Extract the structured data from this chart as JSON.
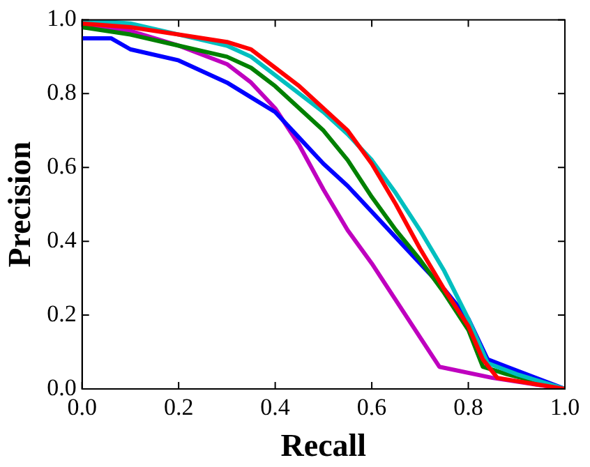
{
  "chart_data": {
    "type": "line",
    "xlabel": "Recall",
    "ylabel": "Precision",
    "xlim": [
      0,
      1
    ],
    "ylim": [
      0,
      1
    ],
    "xticks": [
      {
        "value": 0,
        "label": "0.0"
      },
      {
        "value": 0.2,
        "label": "0.2"
      },
      {
        "value": 0.4,
        "label": "0.4"
      },
      {
        "value": 0.6,
        "label": "0.6"
      },
      {
        "value": 0.8,
        "label": "0.8"
      },
      {
        "value": 1,
        "label": "1.0"
      }
    ],
    "yticks": [
      {
        "value": 0,
        "label": "0.0"
      },
      {
        "value": 0.2,
        "label": "0.2"
      },
      {
        "value": 0.4,
        "label": "0.4"
      },
      {
        "value": 0.6,
        "label": "0.6"
      },
      {
        "value": 0.8,
        "label": "0.8"
      },
      {
        "value": 1,
        "label": "1.0"
      }
    ],
    "grid": false,
    "legend": false,
    "marker": "none",
    "line_style": "solid",
    "series": [
      {
        "color": "#ff0000",
        "x": [
          0,
          0.1,
          0.2,
          0.3,
          0.35,
          0.4,
          0.45,
          0.5,
          0.55,
          0.6,
          0.65,
          0.7,
          0.75,
          0.8,
          0.83,
          0.86,
          1.0
        ],
        "values": [
          0.99,
          0.98,
          0.96,
          0.94,
          0.92,
          0.87,
          0.82,
          0.76,
          0.7,
          0.61,
          0.5,
          0.38,
          0.27,
          0.17,
          0.08,
          0.03,
          0.0
        ]
      },
      {
        "color": "#00bfbf",
        "x": [
          0,
          0.1,
          0.2,
          0.3,
          0.35,
          0.4,
          0.45,
          0.5,
          0.55,
          0.6,
          0.65,
          0.7,
          0.75,
          0.8,
          0.84,
          0.9,
          1.0
        ],
        "values": [
          1.0,
          0.99,
          0.96,
          0.93,
          0.9,
          0.85,
          0.8,
          0.75,
          0.69,
          0.62,
          0.53,
          0.43,
          0.32,
          0.19,
          0.07,
          0.04,
          0.0
        ]
      },
      {
        "color": "#008000",
        "x": [
          0,
          0.1,
          0.2,
          0.3,
          0.35,
          0.4,
          0.45,
          0.5,
          0.55,
          0.6,
          0.65,
          0.7,
          0.75,
          0.8,
          0.83,
          0.88,
          1.0
        ],
        "values": [
          0.98,
          0.96,
          0.93,
          0.9,
          0.87,
          0.82,
          0.76,
          0.7,
          0.62,
          0.52,
          0.43,
          0.35,
          0.26,
          0.16,
          0.06,
          0.04,
          0.0
        ]
      },
      {
        "color": "#0000ff",
        "x": [
          0,
          0.06,
          0.1,
          0.2,
          0.3,
          0.35,
          0.4,
          0.45,
          0.5,
          0.55,
          0.6,
          0.65,
          0.7,
          0.75,
          0.8,
          0.84,
          0.88,
          1.0
        ],
        "values": [
          0.95,
          0.95,
          0.92,
          0.89,
          0.83,
          0.79,
          0.75,
          0.68,
          0.61,
          0.55,
          0.48,
          0.41,
          0.34,
          0.27,
          0.19,
          0.08,
          0.06,
          0.0
        ]
      },
      {
        "color": "#bf00bf",
        "x": [
          0,
          0.1,
          0.2,
          0.3,
          0.35,
          0.4,
          0.45,
          0.5,
          0.55,
          0.6,
          0.65,
          0.7,
          0.74,
          0.85,
          1.0
        ],
        "values": [
          0.98,
          0.97,
          0.93,
          0.88,
          0.83,
          0.76,
          0.66,
          0.54,
          0.43,
          0.34,
          0.24,
          0.14,
          0.06,
          0.03,
          0.0
        ]
      }
    ]
  }
}
